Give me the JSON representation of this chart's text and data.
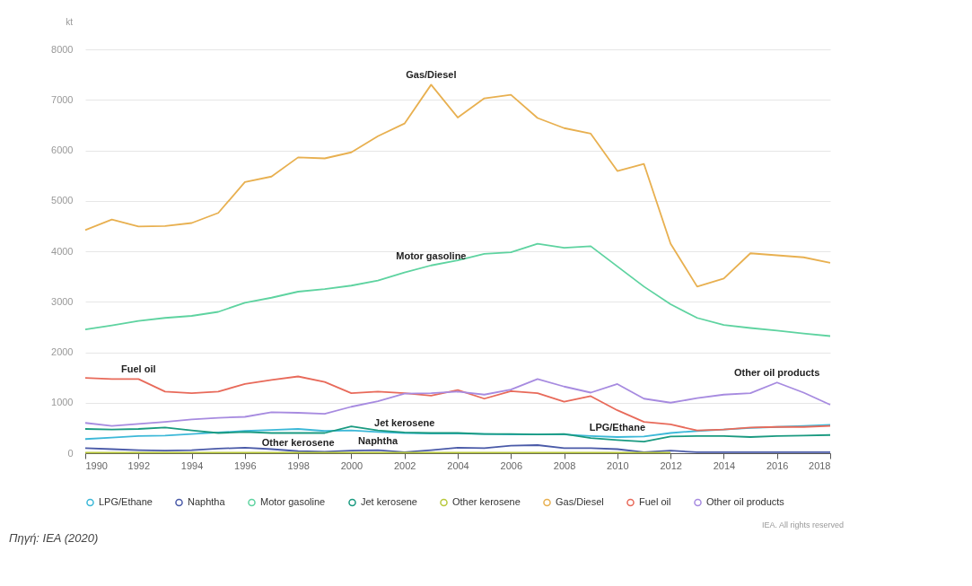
{
  "chart_data": {
    "type": "line",
    "ylabel": "kt",
    "xlim": [
      1990,
      2018
    ],
    "xticks": [
      1990,
      1992,
      1994,
      1996,
      1998,
      2000,
      2002,
      2004,
      2006,
      2008,
      2010,
      2012,
      2014,
      2016,
      2018
    ],
    "ylim": [
      0,
      8000
    ],
    "yticks": [
      0,
      1000,
      2000,
      3000,
      4000,
      5000,
      6000,
      7000,
      8000
    ],
    "grid": "y",
    "legend": "bottom",
    "marker": "none",
    "line_style": "solid",
    "x": [
      1990,
      1991,
      1992,
      1993,
      1994,
      1995,
      1996,
      1997,
      1998,
      1999,
      2000,
      2001,
      2002,
      2003,
      2004,
      2005,
      2006,
      2007,
      2008,
      2009,
      2010,
      2011,
      2012,
      2013,
      2014,
      2015,
      2016,
      2017,
      2018
    ],
    "series": [
      {
        "name": "LPG/Ethane",
        "color": "#3cb8d8",
        "values": [
          280,
          310,
          340,
          350,
          380,
          410,
          440,
          460,
          480,
          440,
          450,
          420,
          400,
          390,
          390,
          380,
          370,
          370,
          370,
          340,
          320,
          330,
          400,
          440,
          470,
          500,
          520,
          540,
          560
        ]
      },
      {
        "name": "Naphtha",
        "color": "#4a5aa8",
        "values": [
          100,
          80,
          60,
          50,
          60,
          90,
          110,
          80,
          40,
          30,
          50,
          60,
          20,
          60,
          110,
          100,
          150,
          160,
          100,
          100,
          80,
          20,
          50,
          20,
          20,
          20,
          20,
          20,
          20
        ]
      },
      {
        "name": "Motor gasoline",
        "color": "#5ed3a0",
        "values": [
          2450,
          2530,
          2620,
          2680,
          2720,
          2800,
          2980,
          3080,
          3200,
          3250,
          3320,
          3420,
          3580,
          3720,
          3820,
          3950,
          3980,
          4150,
          4070,
          4100,
          3700,
          3300,
          2950,
          2680,
          2540,
          2480,
          2430,
          2370,
          2320
        ]
      },
      {
        "name": "Jet kerosene",
        "color": "#1a9a80",
        "values": [
          480,
          470,
          480,
          510,
          450,
          400,
          420,
          400,
          400,
          400,
          530,
          450,
          410,
          400,
          400,
          380,
          380,
          370,
          380,
          300,
          260,
          230,
          330,
          340,
          340,
          320,
          340,
          350,
          360
        ]
      },
      {
        "name": "Other kerosene",
        "color": "#b8c83c",
        "values": [
          10,
          10,
          10,
          10,
          10,
          10,
          10,
          10,
          10,
          10,
          10,
          10,
          10,
          10,
          10,
          10,
          10,
          10,
          10,
          10,
          10,
          10,
          10,
          null,
          null,
          null,
          null,
          null,
          null
        ]
      },
      {
        "name": "Gas/Diesel",
        "color": "#e8b050",
        "values": [
          4420,
          4630,
          4490,
          4500,
          4560,
          4760,
          5370,
          5480,
          5860,
          5840,
          5960,
          6280,
          6530,
          7300,
          6650,
          7030,
          7100,
          6640,
          6440,
          6330,
          5590,
          5730,
          4150,
          3300,
          3460,
          3960,
          3920,
          3880,
          3770
        ]
      },
      {
        "name": "Fuel oil",
        "color": "#e86a5a",
        "values": [
          1490,
          1470,
          1470,
          1220,
          1190,
          1220,
          1370,
          1450,
          1520,
          1410,
          1190,
          1220,
          1190,
          1140,
          1250,
          1080,
          1230,
          1190,
          1020,
          1130,
          850,
          620,
          570,
          450,
          470,
          510,
          520,
          520,
          540
        ]
      },
      {
        "name": "Other oil products",
        "color": "#a78be0",
        "values": [
          600,
          540,
          580,
          620,
          670,
          700,
          720,
          810,
          800,
          780,
          920,
          1030,
          1180,
          1190,
          1220,
          1160,
          1260,
          1470,
          1320,
          1200,
          1370,
          1080,
          1000,
          1090,
          1160,
          1190,
          1400,
          1200,
          960
        ]
      }
    ],
    "annotations": [
      {
        "text": "Gas/Diesel",
        "x": 2003,
        "y": 7300
      },
      {
        "text": "Motor gasoline",
        "x": 2003,
        "y": 3720
      },
      {
        "text": "Fuel oil",
        "x": 1992,
        "y": 1470
      },
      {
        "text": "Other oil products",
        "x": 2016,
        "y": 1400
      },
      {
        "text": "Jet kerosene",
        "x": 2002,
        "y": 410
      },
      {
        "text": "LPG/Ethane",
        "x": 2010,
        "y": 320
      },
      {
        "text": "Other kerosene",
        "x": 1998,
        "y": 10
      },
      {
        "text": "Naphtha",
        "x": 2001,
        "y": 60
      },
      "Πηγή: IEA (2020)",
      "IEA. All rights reserved"
    ]
  }
}
